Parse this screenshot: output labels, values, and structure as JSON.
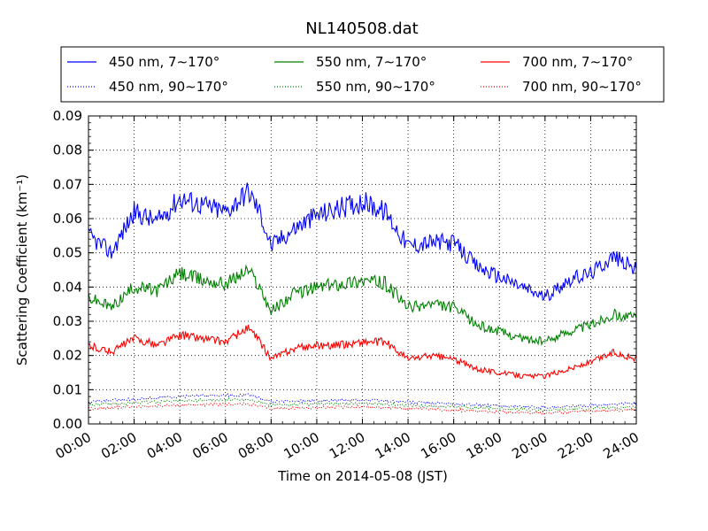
{
  "chart_data": {
    "type": "line",
    "title": "NL140508.dat",
    "xlabel": "Time on 2014-05-08 (JST)",
    "ylabel": "Scattering Coefficient (km⁻¹)",
    "x_range": [
      "00:00",
      "24:00"
    ],
    "ylim": [
      0,
      0.09
    ],
    "x_ticks": [
      "00:00",
      "02:00",
      "04:00",
      "06:00",
      "08:00",
      "10:00",
      "12:00",
      "14:00",
      "16:00",
      "18:00",
      "20:00",
      "22:00",
      "24:00"
    ],
    "y_ticks": [
      "0.00",
      "0.01",
      "0.02",
      "0.03",
      "0.04",
      "0.05",
      "0.06",
      "0.07",
      "0.08",
      "0.09"
    ],
    "grid": true,
    "legend_placement": "top, above plot, 3 columns",
    "series": [
      {
        "name": "450 nm, 7∼170°",
        "color": "#0000ff",
        "style": "solid",
        "x": [
          "00:00",
          "01:00",
          "02:00",
          "03:00",
          "04:00",
          "05:00",
          "06:00",
          "07:00",
          "07:30",
          "08:00",
          "09:00",
          "10:00",
          "11:00",
          "12:00",
          "13:00",
          "14:00",
          "15:00",
          "16:00",
          "17:00",
          "18:00",
          "19:00",
          "20:00",
          "21:00",
          "22:00",
          "23:00",
          "24:00"
        ],
        "y": [
          0.055,
          0.05,
          0.062,
          0.059,
          0.066,
          0.064,
          0.062,
          0.068,
          0.062,
          0.052,
          0.057,
          0.061,
          0.063,
          0.065,
          0.062,
          0.052,
          0.053,
          0.053,
          0.046,
          0.043,
          0.04,
          0.037,
          0.042,
          0.044,
          0.049,
          0.045
        ]
      },
      {
        "name": "550 nm, 7∼170°",
        "color": "#008000",
        "style": "solid",
        "x": [
          "00:00",
          "01:00",
          "02:00",
          "03:00",
          "04:00",
          "05:00",
          "06:00",
          "07:00",
          "07:30",
          "08:00",
          "09:00",
          "10:00",
          "11:00",
          "12:00",
          "13:00",
          "14:00",
          "15:00",
          "16:00",
          "17:00",
          "18:00",
          "19:00",
          "20:00",
          "21:00",
          "22:00",
          "23:00",
          "24:00"
        ],
        "y": [
          0.037,
          0.034,
          0.04,
          0.039,
          0.044,
          0.042,
          0.041,
          0.045,
          0.04,
          0.033,
          0.038,
          0.04,
          0.041,
          0.042,
          0.041,
          0.034,
          0.035,
          0.034,
          0.029,
          0.027,
          0.025,
          0.024,
          0.027,
          0.029,
          0.032,
          0.031
        ]
      },
      {
        "name": "700 nm, 7∼170°",
        "color": "#ff0000",
        "style": "solid",
        "x": [
          "00:00",
          "01:00",
          "02:00",
          "03:00",
          "04:00",
          "05:00",
          "06:00",
          "07:00",
          "07:30",
          "08:00",
          "09:00",
          "10:00",
          "11:00",
          "12:00",
          "13:00",
          "14:00",
          "15:00",
          "16:00",
          "17:00",
          "18:00",
          "19:00",
          "20:00",
          "21:00",
          "22:00",
          "23:00",
          "24:00"
        ],
        "y": [
          0.023,
          0.021,
          0.025,
          0.023,
          0.026,
          0.025,
          0.024,
          0.028,
          0.024,
          0.019,
          0.022,
          0.023,
          0.023,
          0.024,
          0.024,
          0.019,
          0.02,
          0.019,
          0.016,
          0.015,
          0.014,
          0.014,
          0.016,
          0.018,
          0.021,
          0.019
        ]
      },
      {
        "name": "450 nm, 90∼170°",
        "color": "#0000ff",
        "style": "dotted",
        "x": [
          "00:00",
          "04:00",
          "07:00",
          "08:00",
          "12:00",
          "16:00",
          "20:00",
          "24:00"
        ],
        "y": [
          0.0065,
          0.008,
          0.0085,
          0.0065,
          0.007,
          0.0058,
          0.0048,
          0.006
        ]
      },
      {
        "name": "550 nm, 90∼170°",
        "color": "#008000",
        "style": "dotted",
        "x": [
          "00:00",
          "04:00",
          "07:00",
          "08:00",
          "12:00",
          "16:00",
          "20:00",
          "24:00"
        ],
        "y": [
          0.0055,
          0.0068,
          0.0072,
          0.0055,
          0.006,
          0.005,
          0.004,
          0.005
        ]
      },
      {
        "name": "700 nm, 90∼170°",
        "color": "#ff0000",
        "style": "dotted",
        "x": [
          "00:00",
          "04:00",
          "07:00",
          "08:00",
          "12:00",
          "16:00",
          "20:00",
          "24:00"
        ],
        "y": [
          0.0045,
          0.0055,
          0.0058,
          0.0045,
          0.005,
          0.004,
          0.0032,
          0.0042
        ]
      }
    ]
  }
}
